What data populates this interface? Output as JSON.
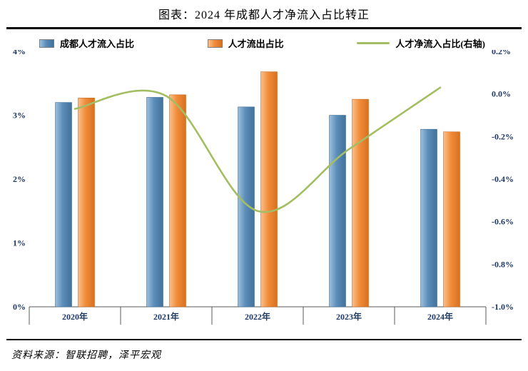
{
  "title": "图表：2024 年成都人才净流入占比转正",
  "source": "资料来源：智联招聘，泽平宏观",
  "legend": [
    {
      "label": "成都人才流入占比",
      "type": "bar",
      "color": "#5b8db8"
    },
    {
      "label": "人才流出占比",
      "type": "bar",
      "color": "#f08c3c"
    },
    {
      "label": "人才净流入占比(右轴)",
      "type": "line",
      "color": "#a3be62"
    }
  ],
  "colors": {
    "tick_label": "#1F3864",
    "axis_line": "#595959",
    "bar_blue": "#5b8db8",
    "bar_orange": "#f08c3c",
    "line_green": "#a3be62"
  },
  "chart_data": {
    "type": "bar",
    "subtype": "grouped-bars-with-line",
    "title": "图表：2024 年成都人才净流入占比转正",
    "categories": [
      "2020年",
      "2021年",
      "2022年",
      "2023年",
      "2024年"
    ],
    "series": [
      {
        "name": "成都人才流入占比",
        "type": "bar",
        "axis": "left",
        "color": "#5b8db8",
        "values": [
          3.2,
          3.28,
          3.13,
          3.0,
          2.78
        ]
      },
      {
        "name": "人才流出占比",
        "type": "bar",
        "axis": "left",
        "color": "#f08c3c",
        "values": [
          3.27,
          3.32,
          3.68,
          3.25,
          2.74
        ]
      },
      {
        "name": "人才净流入占比(右轴)",
        "type": "line",
        "axis": "right",
        "color": "#a3be62",
        "values": [
          -0.07,
          -0.01,
          -0.55,
          -0.26,
          0.03
        ]
      }
    ],
    "left_axis": {
      "min": 0,
      "max": 4,
      "ticks": [
        "4%",
        "3%",
        "2%",
        "1%",
        "0%"
      ],
      "tick_values": [
        4,
        3,
        2,
        1,
        0
      ]
    },
    "right_axis": {
      "min": -1.0,
      "max": 0.2,
      "ticks": [
        "0.2%",
        "0.0%",
        "-0.2%",
        "-0.4%",
        "-0.6%",
        "-0.8%",
        "-1.0%"
      ],
      "tick_values": [
        0.2,
        0.0,
        -0.2,
        -0.4,
        -0.6,
        -0.8,
        -1.0
      ]
    },
    "grid": false,
    "legend_position": "top"
  }
}
